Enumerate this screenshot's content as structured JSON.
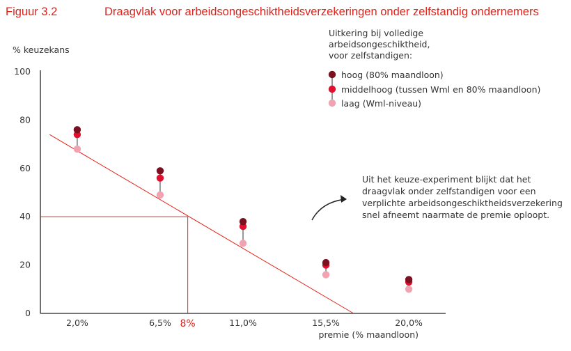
{
  "figure": {
    "number": "Figuur 3.2",
    "title": "Draagvlak voor arbeidsongeschiktheidsverzekeringen onder zelfstandig ondernemers"
  },
  "colors": {
    "accent": "#e2231a",
    "hoog": "#7a1020",
    "middelhoog": "#e2102f",
    "laag": "#f2a3b1",
    "stem": "#555555",
    "axis": "#222222"
  },
  "chart_data": {
    "type": "scatter",
    "xlabel": "premie (% maandloon)",
    "ylabel": "% keuzekans",
    "categories": [
      "2,0%",
      "6,5%",
      "11,0%",
      "15,5%",
      "20,0%"
    ],
    "x": [
      2.0,
      6.5,
      11.0,
      15.5,
      20.0
    ],
    "xlim": [
      0,
      22
    ],
    "ylim": [
      0,
      100
    ],
    "y_ticks": [
      "0",
      "20",
      "40",
      "60",
      "80",
      "100"
    ],
    "y_tick_values": [
      0,
      20,
      40,
      60,
      80,
      100
    ],
    "legend_title": "Uitkering bij volledige arbeidsongeschiktheid, voor zelfstandigen:",
    "legend_title_lines": [
      "Uitkering bij volledige",
      "arbeidsongeschiktheid,",
      "voor zelfstandigen:"
    ],
    "series": [
      {
        "name": "hoog (80% maandloon)",
        "color_key": "hoog",
        "values": [
          76,
          59,
          38,
          21,
          14
        ]
      },
      {
        "name": "middelhoog (tussen Wml en 80% maandloon)",
        "color_key": "middelhoog",
        "values": [
          74,
          56,
          36,
          20,
          13
        ]
      },
      {
        "name": "laag (Wml-niveau)",
        "color_key": "laag",
        "values": [
          68,
          49,
          29,
          16,
          10
        ]
      }
    ],
    "trend_line": {
      "x": [
        0.5,
        17.0
      ],
      "y": [
        74,
        0
      ]
    },
    "highlight": {
      "x": 8.0,
      "y": 40,
      "label": "8%"
    },
    "annotation": "Uit het keuze-experiment blijkt dat het draagvlak onder zelfstandigen voor een verplichte arbeidsongeschiktheidsverzekering snel afneemt naarmate de premie oploopt.",
    "annotation_lines": [
      "Uit het keuze-experiment blijkt dat het",
      "draagvlak onder zelfstandigen voor een",
      "verplichte arbeidsongeschiktheidsverzekering",
      "snel afneemt naarmate de premie oploopt."
    ],
    "legend_position": "top-right",
    "grid": false
  }
}
